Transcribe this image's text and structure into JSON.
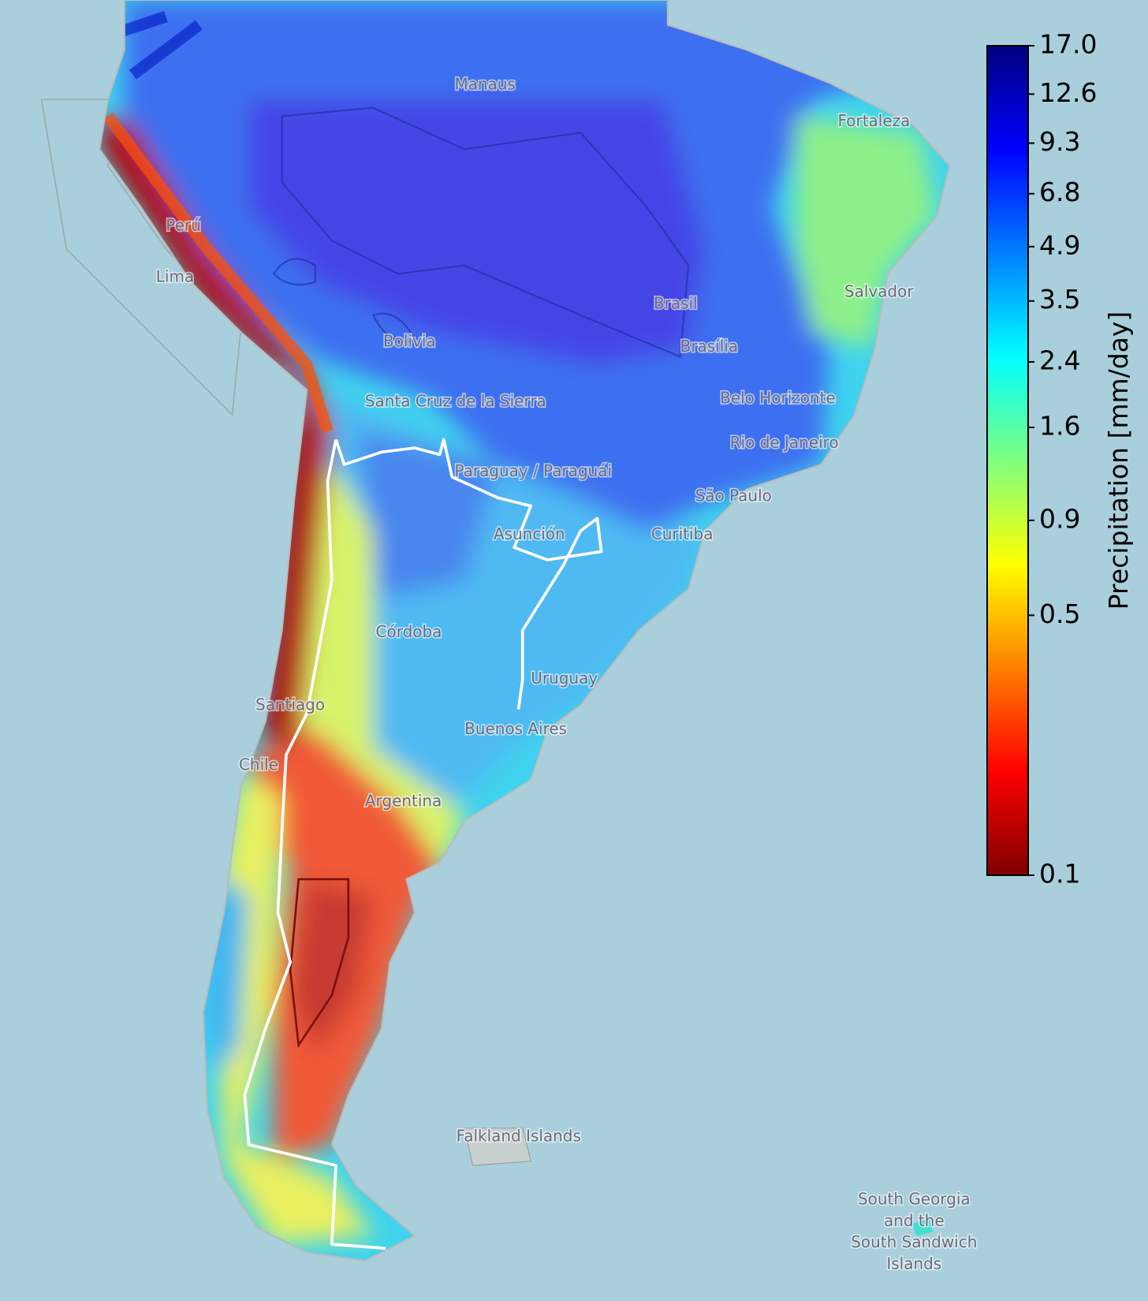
{
  "map": {
    "places": [
      "Manaus",
      "Fortaleza",
      "Lima",
      "Perú",
      "Salvador",
      "Brasil",
      "Brasília",
      "Bolivia",
      "Santa Cruz de la Sierra",
      "Belo Horizonte",
      "Rio de Janeiro",
      "Paraguay / Paraguái",
      "Asunción",
      "São Paulo",
      "Curitiba",
      "Córdoba",
      "Uruguay",
      "Santiago",
      "Buenos Aires",
      "Chile",
      "Argentina",
      "Falkland Islands",
      "South Georgia and the South Sandwich Islands"
    ]
  },
  "colorbar": {
    "label": "Precipitation [mm/day]",
    "log": true,
    "ylim": [
      0.1,
      17.0
    ],
    "yticks": [
      {
        "value": 17.0,
        "label": "17.0"
      },
      12.6,
      9.3,
      6.8,
      4.9,
      3.5,
      2.4,
      1.6,
      0.9,
      0.5,
      0.1
    ],
    "colormap": [
      "#7f0000",
      "#ff0000",
      "#ff7f00",
      "#ffff00",
      "#7fff7f",
      "#00ffff",
      "#007fff",
      "#0000ff",
      "#00007f"
    ]
  }
}
